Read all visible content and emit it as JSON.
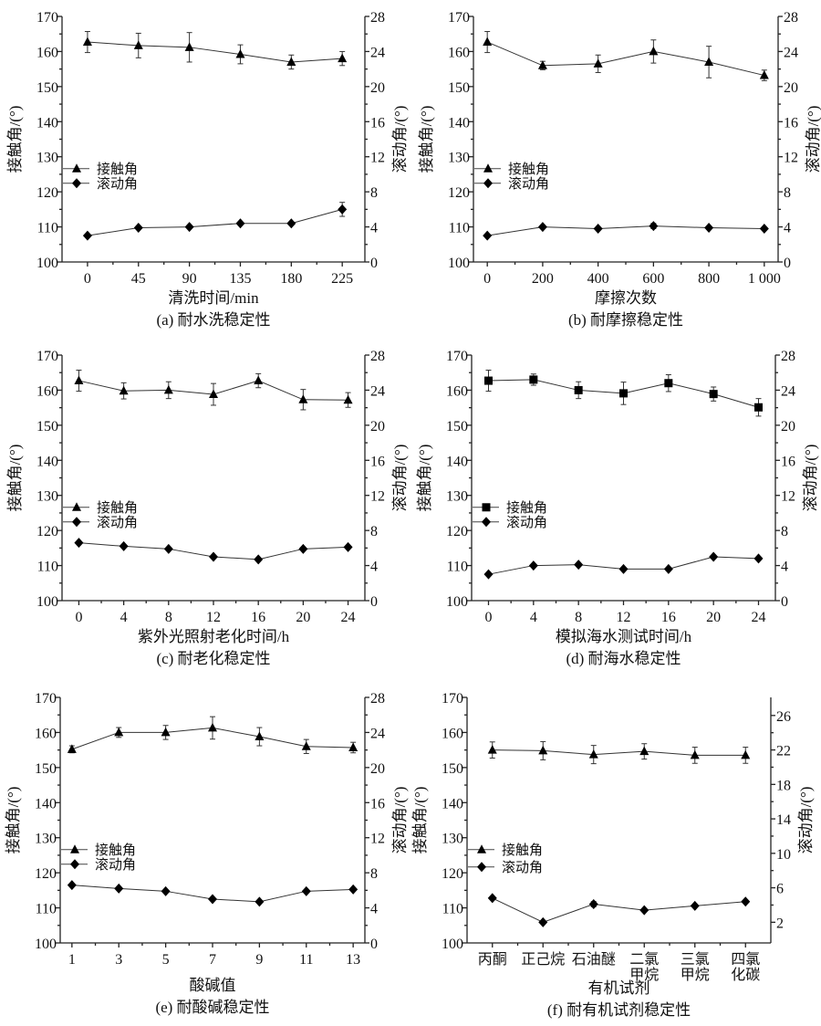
{
  "legend_labels": {
    "contact": "接触角",
    "rolling": "滚动角"
  },
  "chart_data": [
    {
      "type": "line",
      "caption": "(a) 耐水洗稳定性",
      "xlabel": "清洗时间/min",
      "ylabel_left": "接触角/(°)",
      "ylabel_right": "滚动角/(°)",
      "x": [
        0,
        45,
        90,
        135,
        180,
        225
      ],
      "xtick_labels": [
        "0",
        "45",
        "90",
        "135",
        "180",
        "225"
      ],
      "xlim": [
        -22.5,
        245
      ],
      "ylim_left": [
        100,
        170
      ],
      "yticks_left": [
        100,
        110,
        120,
        130,
        140,
        150,
        160,
        170
      ],
      "ylim_right": [
        0,
        28
      ],
      "yticks_right": [
        0,
        4,
        8,
        12,
        16,
        20,
        24,
        28
      ],
      "series": [
        {
          "name": "接触角",
          "axis": "left",
          "marker": "triangle",
          "values": [
            162.7,
            161.7,
            161.2,
            159.2,
            157.0,
            158.0
          ],
          "errors": [
            3.0,
            3.5,
            4.2,
            2.7,
            2.0,
            2.0
          ]
        },
        {
          "name": "滚动角",
          "axis": "right",
          "marker": "diamond",
          "values": [
            3.0,
            3.9,
            4.0,
            4.4,
            4.4,
            6.0
          ],
          "errors": [
            0,
            0,
            0,
            0,
            0,
            0.8
          ]
        }
      ]
    },
    {
      "type": "line",
      "caption": "(b) 耐摩擦稳定性",
      "xlabel": "摩擦次数",
      "ylabel_left": "接触角/(°)",
      "ylabel_right": "滚动角/(°)",
      "x": [
        0,
        200,
        400,
        600,
        800,
        1000
      ],
      "xtick_labels": [
        "0",
        "200",
        "400",
        "600",
        "800",
        "1 000"
      ],
      "xlim": [
        -50,
        1050
      ],
      "ylim_left": [
        100,
        170
      ],
      "yticks_left": [
        100,
        110,
        120,
        130,
        140,
        150,
        160,
        170
      ],
      "ylim_right": [
        0,
        28
      ],
      "yticks_right": [
        0,
        4,
        8,
        12,
        16,
        20,
        24,
        28
      ],
      "series": [
        {
          "name": "接触角",
          "axis": "left",
          "marker": "triangle",
          "values": [
            162.7,
            156.0,
            156.5,
            160.0,
            157.0,
            153.2
          ],
          "errors": [
            3.0,
            1.2,
            2.5,
            3.3,
            4.5,
            1.5
          ]
        },
        {
          "name": "滚动角",
          "axis": "right",
          "marker": "diamond",
          "values": [
            3.0,
            4.0,
            3.8,
            4.1,
            3.9,
            3.8
          ],
          "errors": [
            0,
            0.2,
            0,
            0.3,
            0,
            0
          ]
        }
      ]
    },
    {
      "type": "line",
      "caption": "(c) 耐老化稳定性",
      "xlabel": "紫外光照射老化时间/h",
      "ylabel_left": "接触角/(°)",
      "ylabel_right": "滚动角/(°)",
      "x": [
        0,
        4,
        8,
        12,
        16,
        20,
        24
      ],
      "xtick_labels": [
        "0",
        "4",
        "8",
        "12",
        "16",
        "20",
        "24"
      ],
      "xlim": [
        -1.5,
        25.5
      ],
      "ylim_left": [
        100,
        170
      ],
      "yticks_left": [
        100,
        110,
        120,
        130,
        140,
        150,
        160,
        170
      ],
      "ylim_right": [
        0,
        28
      ],
      "yticks_right": [
        0,
        4,
        8,
        12,
        16,
        20,
        24,
        28
      ],
      "series": [
        {
          "name": "接触角",
          "axis": "left",
          "marker": "triangle",
          "values": [
            162.7,
            159.8,
            160.0,
            158.8,
            162.7,
            157.3,
            157.2
          ],
          "errors": [
            3.0,
            2.3,
            2.4,
            3.1,
            2.0,
            2.9,
            2.1
          ]
        },
        {
          "name": "滚动角",
          "axis": "right",
          "marker": "diamond",
          "values": [
            6.6,
            6.2,
            5.9,
            5.0,
            4.7,
            5.9,
            6.1
          ],
          "errors": [
            0,
            0,
            0,
            0,
            0,
            0,
            0
          ]
        }
      ]
    },
    {
      "type": "line",
      "caption": "(d) 耐海水稳定性",
      "xlabel": "模拟海水测试时间/h",
      "ylabel_left": "接触角/(°)",
      "ylabel_right": "滚动角/(°)",
      "x": [
        0,
        4,
        8,
        12,
        16,
        20,
        24
      ],
      "xtick_labels": [
        "0",
        "4",
        "8",
        "12",
        "16",
        "20",
        "24"
      ],
      "xlim": [
        -1.5,
        25.5
      ],
      "ylim_left": [
        100,
        170
      ],
      "yticks_left": [
        100,
        110,
        120,
        130,
        140,
        150,
        160,
        170
      ],
      "ylim_right": [
        0,
        28
      ],
      "yticks_right": [
        0,
        4,
        8,
        12,
        16,
        20,
        24,
        28
      ],
      "series": [
        {
          "name": "接触角",
          "axis": "left",
          "marker": "square",
          "values": [
            162.7,
            163.0,
            160.0,
            159.1,
            162.0,
            158.9,
            155.1
          ],
          "errors": [
            3.0,
            1.6,
            2.4,
            3.2,
            2.4,
            2.0,
            2.5
          ]
        },
        {
          "name": "滚动角",
          "axis": "right",
          "marker": "diamond",
          "values": [
            3.0,
            4.0,
            4.1,
            3.6,
            3.6,
            5.0,
            4.8
          ],
          "errors": [
            0,
            0,
            0,
            0,
            0,
            0,
            0
          ]
        }
      ]
    },
    {
      "type": "line",
      "caption": "(e) 耐酸碱稳定性",
      "xlabel": "酸碱值",
      "ylabel_left": "接触角/(°)",
      "ylabel_right": "滚动角/(°)",
      "x": [
        1,
        3,
        5,
        7,
        9,
        11,
        13
      ],
      "xtick_labels": [
        "1",
        "3",
        "5",
        "7",
        "9",
        "11",
        "13"
      ],
      "xlim": [
        0.5,
        13.5
      ],
      "ylim_left": [
        100,
        170
      ],
      "yticks_left": [
        100,
        110,
        120,
        130,
        140,
        150,
        160,
        170
      ],
      "ylim_right": [
        0,
        28
      ],
      "yticks_right": [
        0,
        4,
        8,
        12,
        16,
        20,
        24,
        28
      ],
      "series": [
        {
          "name": "接触角",
          "axis": "left",
          "marker": "triangle",
          "values": [
            155.2,
            160.0,
            160.0,
            161.3,
            158.8,
            156.0,
            155.7
          ],
          "errors": [
            1.0,
            1.4,
            2.0,
            3.2,
            2.6,
            2.0,
            1.5
          ]
        },
        {
          "name": "滚动角",
          "axis": "right",
          "marker": "diamond",
          "values": [
            6.6,
            6.2,
            5.9,
            5.0,
            4.7,
            5.9,
            6.1
          ],
          "errors": [
            0,
            0,
            0,
            0,
            0,
            0,
            0
          ]
        }
      ]
    },
    {
      "type": "line",
      "caption": "(f) 耐有机试剂稳定性",
      "xlabel": "有机试剂",
      "ylabel_left": "接触角/(°)",
      "ylabel_right": "滚动角/(°)",
      "categories": [
        "丙酮",
        "正己烷",
        "石油醚",
        "二氯\n甲烷",
        "三氯\n甲烷",
        "四氯\n化碳"
      ],
      "x": [
        0,
        1,
        2,
        3,
        4,
        5
      ],
      "xtick_labels": [
        "丙酮",
        "正己烷",
        "石油醚",
        "二氯\n甲烷",
        "三氯\n甲烷",
        "四氯\n化碳"
      ],
      "xlim": [
        -0.5,
        5.5
      ],
      "ylim_left": [
        100,
        170
      ],
      "yticks_left": [
        100,
        110,
        120,
        130,
        140,
        150,
        160,
        170
      ],
      "ylim_right": [
        -0.4,
        28.1
      ],
      "yticks_right": [
        2,
        6,
        10,
        14,
        18,
        22,
        26
      ],
      "series": [
        {
          "name": "接触角",
          "axis": "left",
          "marker": "triangle",
          "values": [
            155.0,
            154.8,
            153.7,
            154.6,
            153.5,
            153.5
          ],
          "errors": [
            2.3,
            2.6,
            2.6,
            2.2,
            2.3,
            2.3
          ]
        },
        {
          "name": "滚动角",
          "axis": "right",
          "marker": "diamond",
          "values": [
            4.8,
            2.0,
            4.1,
            3.4,
            3.9,
            4.4
          ],
          "errors": [
            0,
            0,
            0.3,
            0,
            0,
            0
          ]
        }
      ]
    }
  ]
}
